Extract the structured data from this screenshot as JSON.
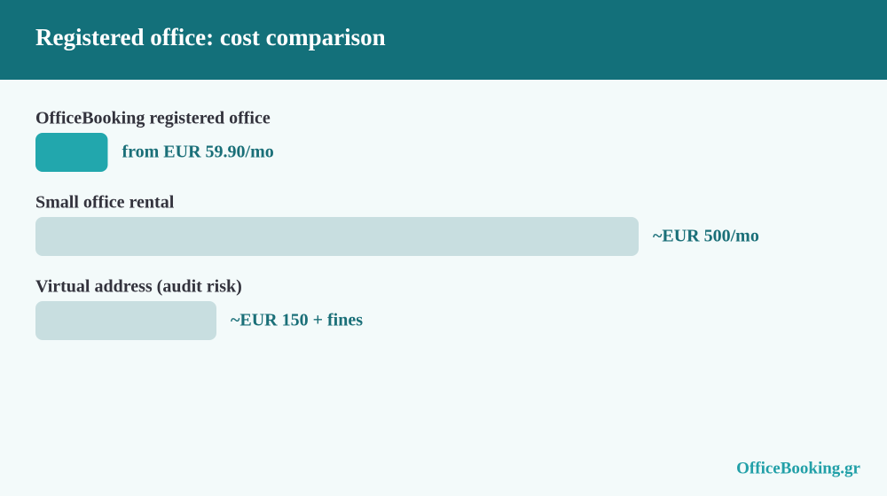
{
  "chart_data": {
    "type": "bar",
    "orientation": "horizontal",
    "title": "Registered office: cost comparison",
    "categories": [
      "OfficeBooking registered office",
      "Small office rental",
      "Virtual address (audit risk)"
    ],
    "values": [
      59.9,
      500,
      150
    ],
    "value_labels": [
      "from EUR 59.90/mo",
      "~EUR 500/mo",
      "~EUR 150 + fines"
    ],
    "colors": [
      "#22a7ad",
      "#c8dee0",
      "#c8dee0"
    ]
  },
  "footer": {
    "brand": "OfficeBooking.gr"
  }
}
